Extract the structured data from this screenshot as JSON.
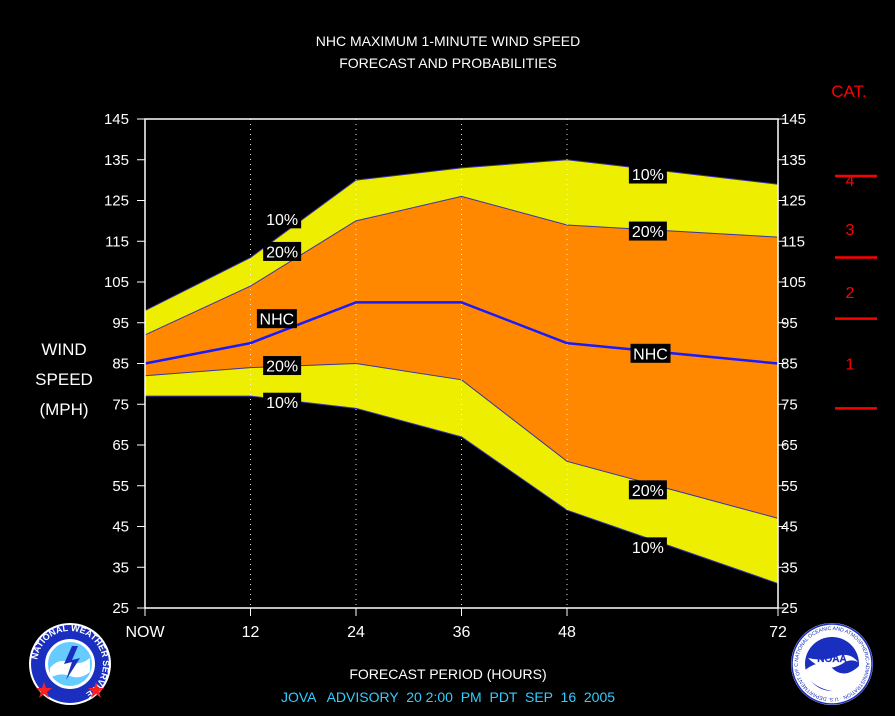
{
  "header": {
    "title_line1": "NHC MAXIMUM 1-MINUTE WIND SPEED",
    "title_line2": "FORECAST AND PROBABILITIES"
  },
  "footer": {
    "xlabel": "FORECAST PERIOD (HOURS)",
    "advisory": "JOVA   ADVISORY  20 2:00  PM  PDT  SEP  16  2005"
  },
  "ylabel_lines": [
    "WIND",
    "SPEED",
    "(MPH)"
  ],
  "category_scale": {
    "title": "CAT.",
    "labels": [
      {
        "text": "4",
        "y": 130
      },
      {
        "text": "3",
        "y": 118
      },
      {
        "text": "2",
        "y": 102.5
      },
      {
        "text": "1",
        "y": 85
      }
    ],
    "boundaries": [
      131,
      111,
      96,
      74
    ],
    "color": "#ff0000"
  },
  "logos": {
    "left_text": "NATIONAL WEATHER SERVICE",
    "right_text": "NATIONAL OCEANIC AND ATMOSPHERIC ADMINISTRATION · U.S. DEPARTMENT OF COMMERCE",
    "right_badge": "NOAA"
  },
  "chart_data": {
    "type": "area",
    "xlabel": "FORECAST PERIOD (HOURS)",
    "ylabel": "WIND SPEED (MPH)",
    "xlim": [
      0,
      72
    ],
    "ylim": [
      25,
      145
    ],
    "x_ticks": [
      0,
      12,
      24,
      36,
      48,
      72
    ],
    "x_tick_labels": [
      "NOW",
      "12",
      "24",
      "36",
      "48",
      "72"
    ],
    "y_ticks": [
      25,
      35,
      45,
      55,
      65,
      75,
      85,
      95,
      105,
      115,
      125,
      135,
      145
    ],
    "grid": "vertical dotted at forecast hours",
    "colors": {
      "outer_band": "#eeee00",
      "inner_band": "#ff8800",
      "nhc_line": "#1a1aff",
      "axes": "#ffffff"
    },
    "x": [
      0,
      12,
      24,
      36,
      48,
      72
    ],
    "series": [
      {
        "label": "10%",
        "role": "upper_10",
        "values": [
          98,
          111,
          130,
          133,
          135,
          129
        ]
      },
      {
        "label": "20%",
        "role": "upper_20",
        "values": [
          92,
          104,
          120,
          126,
          119,
          116
        ]
      },
      {
        "label": "NHC",
        "role": "nhc",
        "values": [
          85,
          90,
          100,
          100,
          90,
          85
        ]
      },
      {
        "label": "20%",
        "role": "lower_20",
        "values": [
          82,
          84,
          85,
          81,
          61,
          47
        ]
      },
      {
        "label": "10%",
        "role": "lower_10",
        "values": [
          77,
          77,
          74,
          67,
          49,
          31
        ]
      }
    ],
    "annotations": [
      {
        "text": "10%",
        "x": 15.6,
        "y": 120.5
      },
      {
        "text": "20%",
        "x": 15.6,
        "y": 112.5
      },
      {
        "text": "NHC",
        "x": 15.0,
        "y": 96
      },
      {
        "text": "20%",
        "x": 15.6,
        "y": 84.5
      },
      {
        "text": "10%",
        "x": 15.6,
        "y": 75.5
      },
      {
        "text": "10%",
        "x": 57.2,
        "y": 131.5
      },
      {
        "text": "20%",
        "x": 57.2,
        "y": 117.5
      },
      {
        "text": "NHC",
        "x": 57.5,
        "y": 87.5
      },
      {
        "text": "20%",
        "x": 57.2,
        "y": 54
      },
      {
        "text": "10%",
        "x": 57.2,
        "y": 40
      }
    ]
  }
}
